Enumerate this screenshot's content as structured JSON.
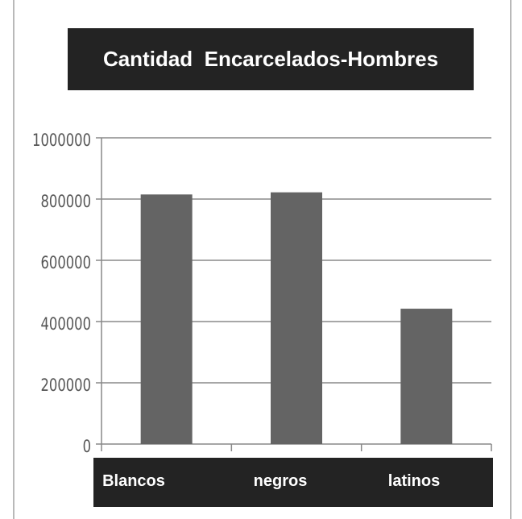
{
  "chart_data": {
    "type": "bar",
    "title": "Cantidad  Encarcelados-Hombres",
    "categories": [
      "Blancos",
      "negros",
      "latinos"
    ],
    "values": [
      815000,
      822000,
      442000
    ],
    "ylim": [
      0,
      1000000
    ],
    "yticks": [
      "0",
      "200000",
      "400000",
      "600000",
      "800000",
      "1000000"
    ],
    "xlabel": "",
    "ylabel": "",
    "grid": true,
    "legend": false,
    "colors": {
      "bar": "#646464",
      "grid": "#8a8a8a",
      "axis": "#888888",
      "title_background": "#232323",
      "category_band": "#232323",
      "text_on_dark": "#ffffff",
      "tick_text": "#555555"
    }
  }
}
